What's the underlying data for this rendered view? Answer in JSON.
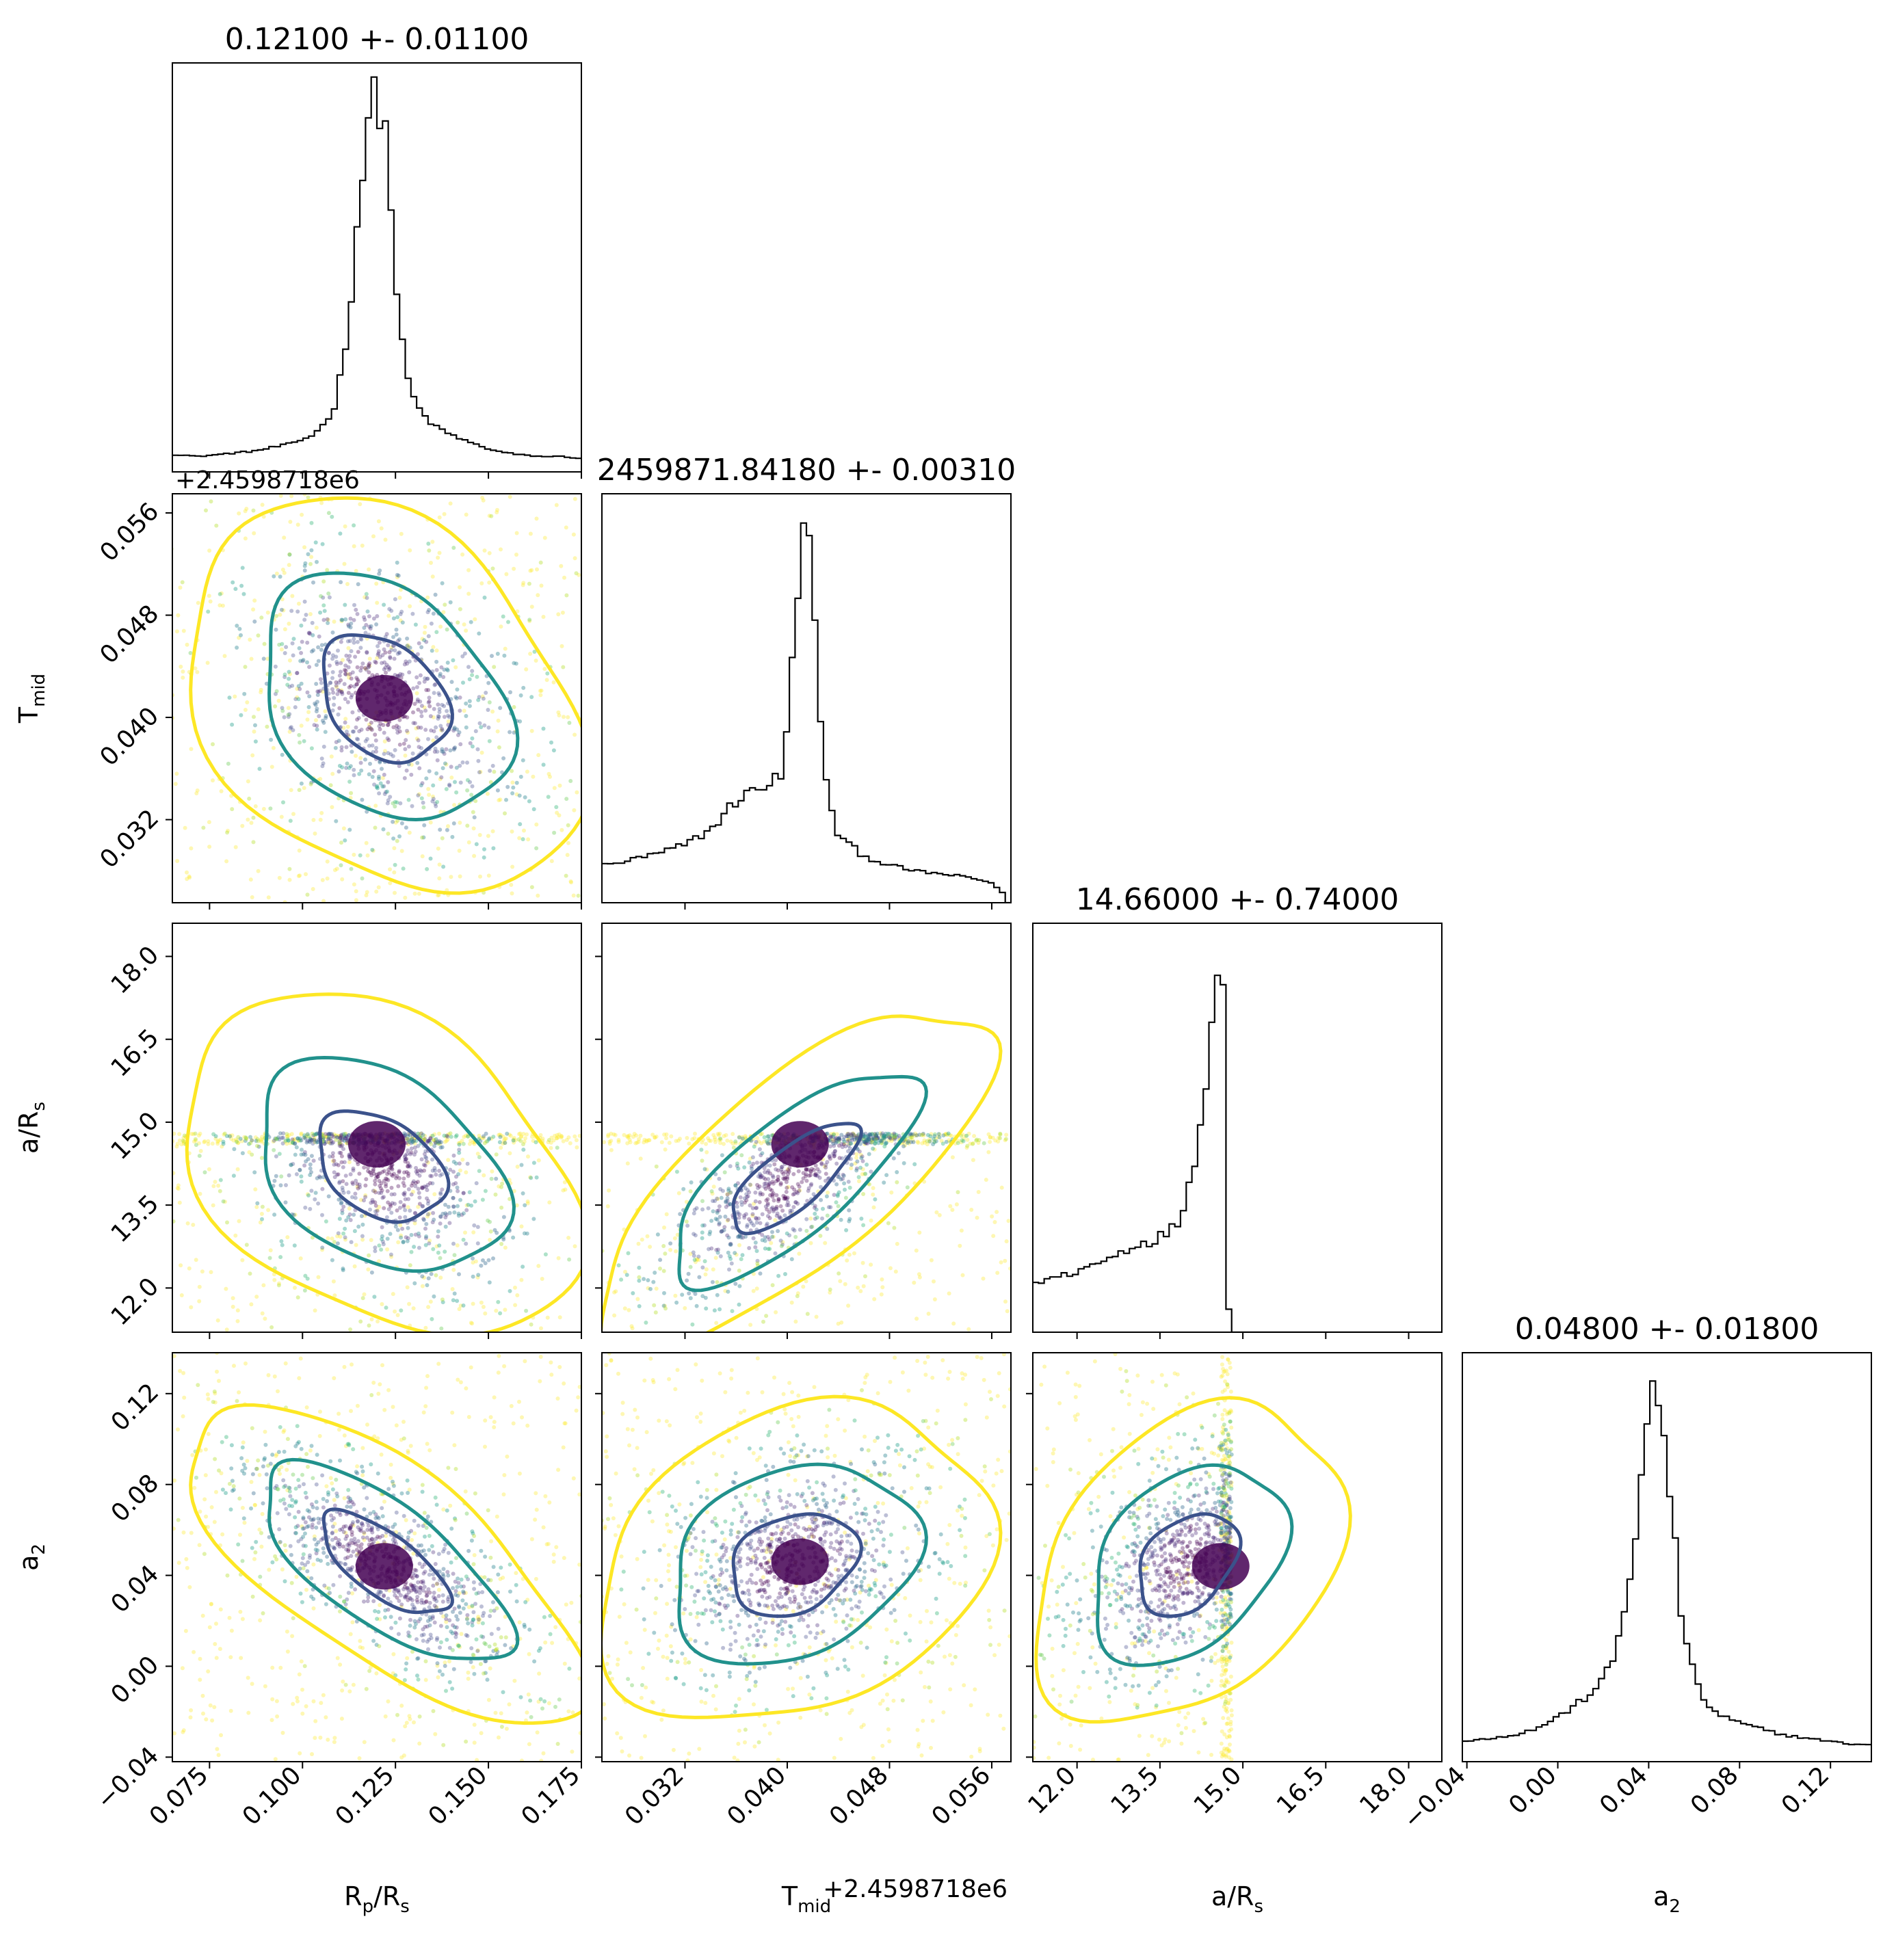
{
  "chart_data": {
    "type": "corner",
    "params": [
      {
        "key": "rp",
        "label": "R",
        "sub": "p",
        "label_tail": "/R",
        "sub2": "s",
        "range": [
          0.065,
          0.175
        ],
        "ticks": [
          0.075,
          0.1,
          0.125,
          0.15,
          0.175
        ],
        "tick_labels": [
          "0.075",
          "0.100",
          "0.125",
          "0.150",
          "0.175"
        ],
        "title": "0.12100 +- 0.01100",
        "offset": ""
      },
      {
        "key": "tmid",
        "label": "T",
        "sub": "mid",
        "label_tail": "",
        "sub2": "",
        "range": [
          0.0255,
          0.0575
        ],
        "ticks": [
          0.032,
          0.04,
          0.048,
          0.056
        ],
        "tick_labels": [
          "0.032",
          "0.040",
          "0.048",
          "0.056"
        ],
        "title": "2459871.84180 +- 0.00310",
        "offset": "+2.4598718e6"
      },
      {
        "key": "ars",
        "label": "a/R",
        "sub": "s",
        "label_tail": "",
        "sub2": "",
        "range": [
          11.2,
          18.6
        ],
        "ticks": [
          12.0,
          13.5,
          15.0,
          16.5,
          18.0
        ],
        "tick_labels": [
          "12.0",
          "13.5",
          "15.0",
          "16.5",
          "18.0"
        ],
        "title": "14.66000 +- 0.74000",
        "offset": ""
      },
      {
        "key": "a2",
        "label": "a",
        "sub": "2",
        "label_tail": "",
        "sub2": "",
        "range": [
          -0.042,
          0.138
        ],
        "ticks": [
          -0.04,
          0.0,
          0.04,
          0.08,
          0.12
        ],
        "tick_labels": [
          "−0.04",
          "0.00",
          "0.04",
          "0.08",
          "0.12"
        ],
        "title": "0.04800 +- 0.01800",
        "offset": ""
      }
    ],
    "histograms": [
      {
        "param": "rp",
        "centers": [
          0.067,
          0.072,
          0.077,
          0.082,
          0.087,
          0.092,
          0.097,
          0.102,
          0.106,
          0.109,
          0.112,
          0.115,
          0.118,
          0.12,
          0.122,
          0.124,
          0.126,
          0.129,
          0.132,
          0.136,
          0.141,
          0.146,
          0.152,
          0.158,
          0.164,
          0.17,
          0.174
        ],
        "counts": [
          5,
          4,
          5,
          6,
          7,
          9,
          11,
          15,
          22,
          34,
          70,
          140,
          195,
          205,
          190,
          140,
          75,
          40,
          28,
          20,
          15,
          11,
          7,
          5,
          4,
          4,
          3
        ]
      },
      {
        "param": "tmid",
        "centers": [
          0.026,
          0.028,
          0.03,
          0.032,
          0.034,
          0.036,
          0.038,
          0.0395,
          0.04,
          0.0405,
          0.041,
          0.0415,
          0.042,
          0.0425,
          0.043,
          0.044,
          0.046,
          0.048,
          0.05,
          0.052,
          0.054,
          0.056,
          0.057
        ],
        "counts": [
          10,
          12,
          14,
          17,
          22,
          32,
          37,
          40,
          55,
          85,
          118,
          126,
          105,
          68,
          38,
          20,
          13,
          10,
          8,
          7,
          6,
          4,
          0
        ]
      },
      {
        "param": "ars",
        "centers": [
          11.3,
          11.6,
          11.9,
          12.2,
          12.5,
          12.8,
          13.1,
          13.4,
          13.7,
          13.9,
          14.1,
          14.3,
          14.45,
          14.55,
          14.65,
          14.75,
          14.85,
          15.0,
          16.0,
          17.0,
          18.0,
          18.6
        ],
        "counts": [
          20,
          22,
          24,
          27,
          30,
          34,
          38,
          40,
          44,
          52,
          75,
          110,
          140,
          175,
          172,
          0,
          0,
          0,
          0,
          0,
          0,
          0
        ]
      },
      {
        "param": "a2",
        "centers": [
          -0.04,
          -0.03,
          -0.02,
          -0.01,
          0.0,
          0.01,
          0.02,
          0.025,
          0.03,
          0.035,
          0.04,
          0.043,
          0.046,
          0.05,
          0.055,
          0.06,
          0.065,
          0.07,
          0.08,
          0.09,
          0.1,
          0.11,
          0.12,
          0.13,
          0.136
        ],
        "counts": [
          4,
          5,
          6,
          8,
          12,
          17,
          24,
          32,
          50,
          78,
          110,
          122,
          112,
          80,
          42,
          25,
          17,
          13,
          10,
          8,
          6,
          5,
          4,
          3,
          3
        ]
      }
    ],
    "hist_style": "step",
    "contour_levels": [
      "inner",
      "middle",
      "outer"
    ],
    "contour_colors": [
      "#3b528b",
      "#21918c",
      "#fde725"
    ],
    "point_colormap": "viridis",
    "pairs": [
      {
        "x": "rp",
        "y": "tmid",
        "center": [
          0.122,
          0.0415
        ],
        "sigma": [
          0.019,
          0.0055
        ],
        "rho": -0.3,
        "peak_bin": [
          0.122,
          0.0415
        ]
      },
      {
        "x": "rp",
        "y": "ars",
        "center": [
          0.121,
          14.2
        ],
        "sigma": [
          0.019,
          1.1
        ],
        "rho": -0.35,
        "peak_bin": [
          0.12,
          14.6
        ]
      },
      {
        "x": "tmid",
        "y": "ars",
        "center": [
          0.0405,
          14.0
        ],
        "sigma": [
          0.0055,
          1.1
        ],
        "rho": 0.75,
        "peak_bin": [
          0.041,
          14.6
        ]
      },
      {
        "x": "rp",
        "y": "a2",
        "center": [
          0.122,
          0.045
        ],
        "sigma": [
          0.019,
          0.025
        ],
        "rho": -0.7,
        "peak_bin": [
          0.122,
          0.044
        ]
      },
      {
        "x": "tmid",
        "y": "a2",
        "center": [
          0.0405,
          0.045
        ],
        "sigma": [
          0.0055,
          0.025
        ],
        "rho": 0.25,
        "peak_bin": [
          0.041,
          0.046
        ]
      },
      {
        "x": "ars",
        "y": "a2",
        "center": [
          14.0,
          0.045
        ],
        "sigma": [
          1.0,
          0.025
        ],
        "rho": 0.35,
        "peak_bin": [
          14.6,
          0.044
        ]
      }
    ]
  }
}
